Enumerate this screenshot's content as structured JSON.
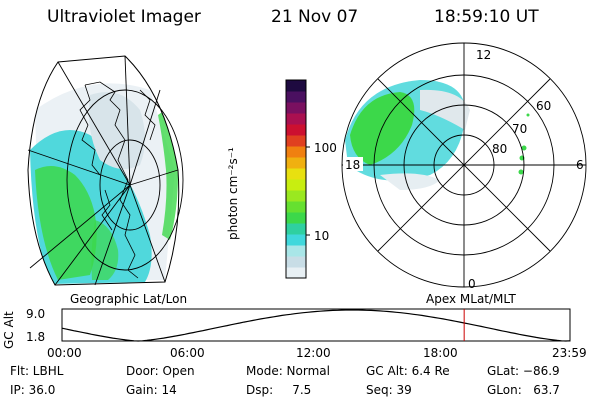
{
  "header": {
    "instrument": "Ultraviolet Imager",
    "date": "21 Nov 07",
    "time": "18:59:10 UT"
  },
  "colorbar": {
    "label": "photon cm⁻²s⁻¹",
    "ticks": [
      "100",
      "10"
    ],
    "colors": [
      "#e8f0f4",
      "#c8dde6",
      "#a9e6e8",
      "#40d8dc",
      "#2fd0a0",
      "#3cd84a",
      "#66e030",
      "#9ae820",
      "#c8ee10",
      "#e8e010",
      "#f0b010",
      "#f08010",
      "#e04020",
      "#cc1030",
      "#aa1050",
      "#7a1060",
      "#4a1060",
      "#1e0a40"
    ]
  },
  "left_map": {
    "label": "Geographic Lat/Lon"
  },
  "right_map": {
    "label": "Apex MLat/MLT",
    "lat_labels": [
      "60",
      "70",
      "80"
    ],
    "mlt_labels": {
      "top": "12",
      "bottom": "0",
      "left": "18",
      "right": "6"
    }
  },
  "orbit_plot": {
    "ylabel": "GC Alt",
    "ytick_max": "9.0",
    "ytick_min": "1.8",
    "xticks": [
      "00:00",
      "06:00",
      "12:00",
      "18:00",
      "23:59"
    ],
    "current_time_hours": 19.0,
    "marker_color": "#cc0000"
  },
  "info": {
    "filter": "Flt: LBHL",
    "ip": "IP: 36.0",
    "door": "Door: Open",
    "gain": "Gain: 14",
    "mode": "Mode: Normal",
    "dsp": "Dsp:     7.5",
    "gc_alt": "GC Alt: 6.4 Re",
    "seq": "Seq: 39",
    "glat": "GLat: −86.9",
    "glon": "GLon:   63.7"
  }
}
